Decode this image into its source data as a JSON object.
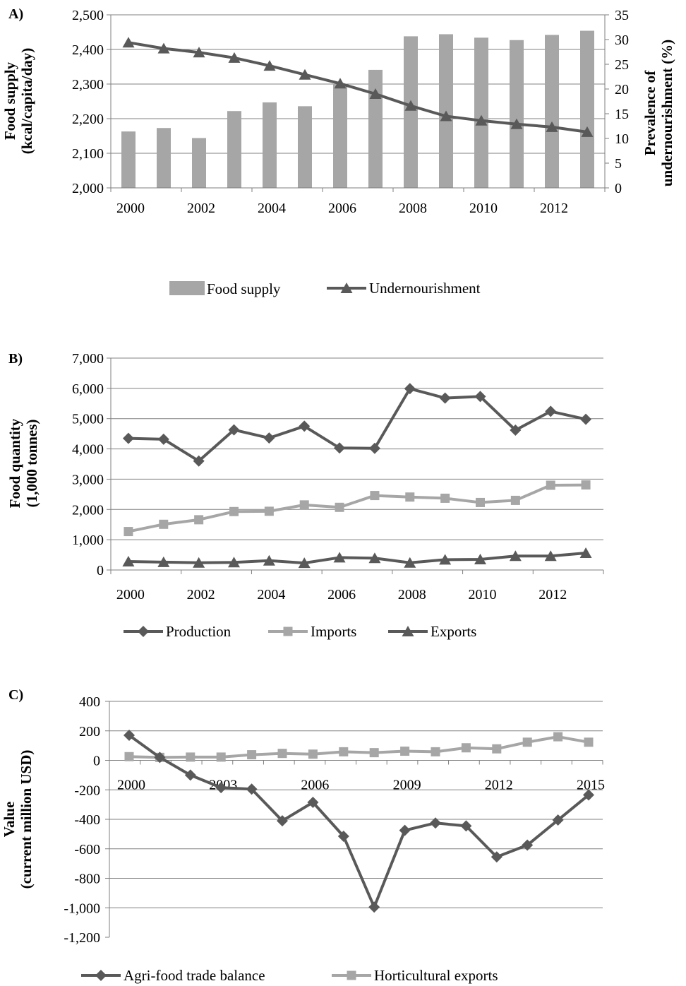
{
  "colors": {
    "dark": "#595959",
    "light": "#a6a6a6",
    "bar": "#a6a6a6",
    "grid": "#808080",
    "axis": "#7f7f7f"
  },
  "chart_data": [
    {
      "panel_label": "A)",
      "type": "bar+line",
      "x": [
        2000,
        2001,
        2002,
        2003,
        2004,
        2005,
        2006,
        2007,
        2008,
        2009,
        2010,
        2011,
        2012,
        2013
      ],
      "x_tick_labels": [
        "2000",
        "2002",
        "2004",
        "2006",
        "2008",
        "2010",
        "2012"
      ],
      "ylabel_lines": [
        "Food supply",
        "(kcal/capita/day)"
      ],
      "y2label_lines": [
        "Prevalence of",
        "undernourishment  (%)"
      ],
      "ylim": [
        2000,
        2500
      ],
      "y_tick_labels": [
        "2,000",
        "2,100",
        "2,200",
        "2,300",
        "2,400",
        "2,500"
      ],
      "y2lim": [
        0,
        35
      ],
      "y2_tick_labels": [
        "0",
        "5",
        "10",
        "15",
        "20",
        "25",
        "30",
        "35"
      ],
      "grid": true,
      "legend_position": "bottom",
      "series": [
        {
          "name": "Food supply",
          "kind": "bar",
          "axis": "left",
          "values": [
            2163,
            2173,
            2144,
            2222,
            2247,
            2236,
            2301,
            2341,
            2438,
            2444,
            2434,
            2427,
            2442,
            2454
          ]
        },
        {
          "name": "Undernourishment",
          "kind": "line",
          "marker": "triangle",
          "axis": "right",
          "values": [
            29.4,
            28.2,
            27.4,
            26.3,
            24.7,
            22.9,
            21.1,
            19.0,
            16.6,
            14.5,
            13.6,
            12.9,
            12.3,
            11.3
          ]
        }
      ]
    },
    {
      "panel_label": "B)",
      "type": "line",
      "x": [
        2000,
        2001,
        2002,
        2003,
        2004,
        2005,
        2006,
        2007,
        2008,
        2009,
        2010,
        2011,
        2012,
        2013
      ],
      "x_tick_labels": [
        "2000",
        "2002",
        "2004",
        "2006",
        "2008",
        "2010",
        "2012"
      ],
      "ylabel_lines": [
        "Food quantity",
        "(1,000  tonnes)"
      ],
      "ylim": [
        0,
        7000
      ],
      "y_tick_labels": [
        "0",
        "1,000",
        "2,000",
        "3,000",
        "4,000",
        "5,000",
        "6,000",
        "7,000"
      ],
      "grid": true,
      "legend_position": "bottom",
      "series": [
        {
          "name": "Production",
          "marker": "diamond",
          "values": [
            4350,
            4320,
            3600,
            4630,
            4360,
            4750,
            4030,
            4020,
            5990,
            5680,
            5730,
            4620,
            5240,
            4980
          ]
        },
        {
          "name": "Imports",
          "marker": "square",
          "values": [
            1270,
            1510,
            1660,
            1930,
            1940,
            2150,
            2070,
            2460,
            2410,
            2370,
            2230,
            2300,
            2800,
            2810
          ]
        },
        {
          "name": "Exports",
          "marker": "triangle",
          "values": [
            280,
            260,
            240,
            250,
            310,
            230,
            410,
            390,
            240,
            340,
            350,
            460,
            460,
            560
          ]
        }
      ]
    },
    {
      "panel_label": "C)",
      "type": "line",
      "x": [
        2000,
        2001,
        2002,
        2003,
        2004,
        2005,
        2006,
        2007,
        2008,
        2009,
        2010,
        2011,
        2012,
        2013,
        2014,
        2015
      ],
      "x_tick_labels": [
        "2000",
        "2003",
        "2006",
        "2009",
        "2012",
        "2015"
      ],
      "ylabel_lines": [
        "Value",
        "(current million USD)"
      ],
      "ylim": [
        -1200,
        400
      ],
      "y_tick_labels": [
        "-1,200",
        "-1,000",
        "-800",
        "-600",
        "-400",
        "-200",
        "0",
        "200",
        "400"
      ],
      "grid": true,
      "legend_position": "bottom",
      "series": [
        {
          "name": "Agri-food trade balance",
          "marker": "diamond",
          "values": [
            170,
            20,
            -100,
            -185,
            -195,
            -410,
            -285,
            -515,
            -995,
            -475,
            -425,
            -445,
            -655,
            -575,
            -405,
            -235
          ]
        },
        {
          "name": "Horticultural exports",
          "marker": "square",
          "values": [
            25,
            20,
            22,
            22,
            38,
            47,
            42,
            58,
            52,
            62,
            58,
            85,
            78,
            123,
            160,
            123
          ]
        }
      ]
    }
  ]
}
